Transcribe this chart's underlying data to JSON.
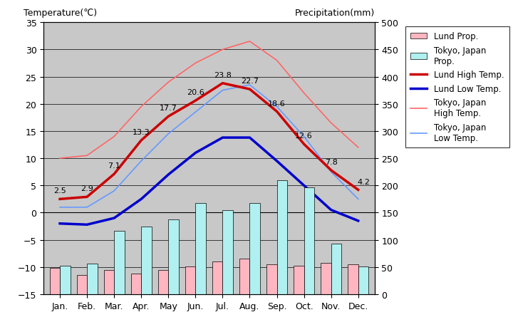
{
  "months": [
    "Jan.",
    "Feb.",
    "Mar.",
    "Apr.",
    "May",
    "Jun.",
    "Jul.",
    "Aug.",
    "Sep.",
    "Oct.",
    "Nov.",
    "Dec."
  ],
  "lund_high_temp": [
    2.5,
    2.9,
    7.1,
    13.3,
    17.7,
    20.6,
    23.8,
    22.7,
    18.6,
    12.6,
    7.8,
    4.2
  ],
  "lund_low_temp": [
    -2.0,
    -2.2,
    -1.0,
    2.5,
    7.0,
    11.0,
    13.8,
    13.8,
    9.5,
    5.0,
    0.5,
    -1.5
  ],
  "tokyo_high_temp": [
    10.0,
    10.5,
    14.0,
    19.5,
    24.0,
    27.5,
    30.0,
    31.5,
    28.0,
    22.0,
    16.5,
    12.0
  ],
  "tokyo_low_temp": [
    1.0,
    1.0,
    4.0,
    9.5,
    14.5,
    18.5,
    22.5,
    23.5,
    19.5,
    14.0,
    7.5,
    2.5
  ],
  "lund_precip_mm": [
    49,
    36,
    44,
    38,
    44,
    51,
    60,
    66,
    55,
    52,
    58,
    55
  ],
  "tokyo_precip_mm": [
    52,
    56,
    117,
    125,
    138,
    168,
    154,
    168,
    210,
    197,
    93,
    51
  ],
  "temp_ylim": [
    -15,
    35
  ],
  "precip_ylim": [
    0,
    500
  ],
  "lund_high_color": "#cc0000",
  "lund_low_color": "#0000cc",
  "tokyo_high_color": "#ff6666",
  "tokyo_low_color": "#6699ff",
  "lund_precip_color": "#ffb6c1",
  "tokyo_precip_color": "#b0f0f0",
  "bg_color": "#c8c8c8",
  "title_left": "Temperature(℃)",
  "title_right": "Precipitation(mm)",
  "legend_labels": [
    "Lund Prop.",
    "Tokyo, Japan\nProp.",
    "Lund High Temp.",
    "Lund Low Temp.",
    "Tokyo, Japan\nHigh Temp.",
    "Tokyo, Japan\nLow Temp."
  ],
  "annotations": [
    "2.5",
    "2.9",
    "7.1",
    "13.3",
    "17.7",
    "20.6",
    "23.8",
    "22.7",
    "18.6",
    "12.6",
    "7.8",
    "4.2"
  ]
}
